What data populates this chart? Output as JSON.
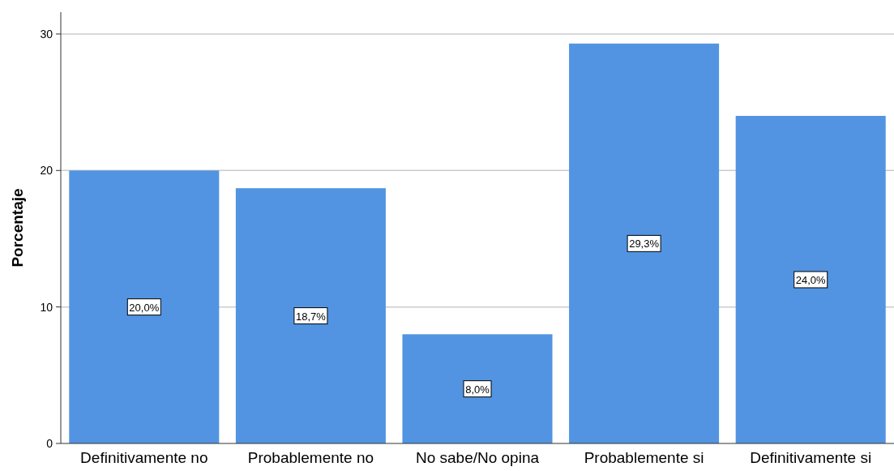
{
  "chart_data": {
    "type": "bar",
    "ylabel": "Porcentaje",
    "categories": [
      "Definitivamente no",
      "Probablemente no",
      "No sabe/No opina",
      "Probablemente si",
      "Definitivamente si"
    ],
    "values": [
      20.0,
      18.7,
      8.0,
      29.3,
      24.0
    ],
    "value_labels": [
      "20,0%",
      "18,7%",
      "8,0%",
      "29,3%",
      "24,0%"
    ],
    "color": "#5294e2",
    "ylim": [
      0,
      31.6
    ],
    "yticks": [
      0,
      10,
      20,
      30
    ],
    "grid": "y"
  }
}
